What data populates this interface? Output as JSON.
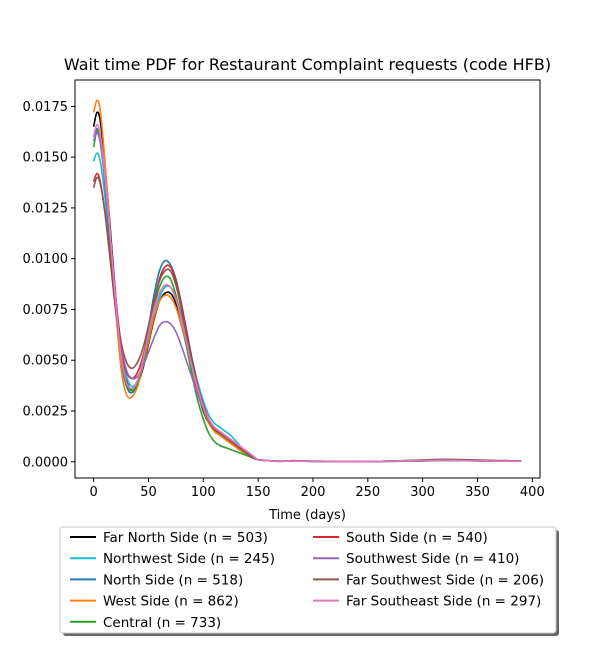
{
  "chart_data": {
    "type": "line",
    "title": "Wait time PDF for Restaurant Complaint  requests (code HFB)",
    "xlabel": "Time (days)",
    "ylabel": "",
    "xlim": [
      -17,
      407
    ],
    "ylim": [
      -0.0008,
      0.0188
    ],
    "xticks": [
      0,
      50,
      100,
      150,
      200,
      250,
      300,
      350,
      400
    ],
    "xtick_labels": [
      "0",
      "50",
      "100",
      "150",
      "200",
      "250",
      "300",
      "350",
      "400"
    ],
    "yticks": [
      0.0,
      0.0025,
      0.005,
      0.0075,
      0.01,
      0.0125,
      0.015,
      0.0175
    ],
    "ytick_labels": [
      "0.0000",
      "0.0025",
      "0.0050",
      "0.0075",
      "0.0100",
      "0.0125",
      "0.0150",
      "0.0175"
    ],
    "grid": false,
    "legend_position": "bottom",
    "series": [
      {
        "name": "Far North Side (n = 503)",
        "color": "#000000",
        "x": [
          0,
          3,
          6,
          10,
          15,
          20,
          25,
          30,
          35,
          40,
          45,
          50,
          55,
          60,
          65,
          70,
          75,
          80,
          85,
          90,
          95,
          100,
          105,
          110,
          115,
          120,
          125,
          130,
          135,
          140,
          145,
          150,
          160,
          170,
          180,
          190,
          200,
          220,
          240,
          260,
          280,
          300,
          320,
          340,
          360,
          380,
          390
        ],
        "y": [
          0.0165,
          0.0172,
          0.0168,
          0.0148,
          0.0116,
          0.0082,
          0.0055,
          0.004,
          0.0035,
          0.0038,
          0.0046,
          0.0058,
          0.007,
          0.0079,
          0.0083,
          0.0083,
          0.0078,
          0.0068,
          0.0057,
          0.0045,
          0.0034,
          0.0025,
          0.0019,
          0.0016,
          0.0014,
          0.0012,
          0.001,
          0.0008,
          0.0006,
          0.0004,
          0.0002,
          0.0001,
          5e-05,
          2e-05,
          5e-05,
          3e-05,
          2e-05,
          1e-05,
          1e-05,
          2e-05,
          3e-05,
          4e-05,
          6e-05,
          5e-05,
          4e-05,
          3e-05,
          3e-05
        ]
      },
      {
        "name": "Northwest Side (n = 245)",
        "color": "#17becf",
        "x": [
          0,
          3,
          6,
          10,
          15,
          20,
          25,
          30,
          35,
          40,
          45,
          50,
          55,
          60,
          65,
          70,
          75,
          80,
          85,
          90,
          95,
          100,
          105,
          110,
          115,
          120,
          125,
          130,
          135,
          140,
          145,
          150,
          160,
          170,
          180,
          190,
          200,
          220,
          240,
          260,
          280,
          300,
          320,
          340,
          360,
          380,
          390
        ],
        "y": [
          0.0148,
          0.0152,
          0.0148,
          0.0132,
          0.0105,
          0.0077,
          0.0055,
          0.0042,
          0.0037,
          0.004,
          0.0048,
          0.006,
          0.0072,
          0.0081,
          0.0086,
          0.0086,
          0.0081,
          0.0072,
          0.0061,
          0.005,
          0.0039,
          0.003,
          0.0023,
          0.0019,
          0.0017,
          0.0015,
          0.0013,
          0.001,
          0.0007,
          0.0005,
          0.0003,
          0.0001,
          5e-05,
          3e-05,
          5e-05,
          4e-05,
          3e-05,
          2e-05,
          1e-05,
          1e-05,
          3e-05,
          6e-05,
          8e-05,
          7e-05,
          5e-05,
          4e-05,
          4e-05
        ]
      },
      {
        "name": "North Side (n = 518)",
        "color": "#1f77b4",
        "x": [
          0,
          3,
          6,
          10,
          15,
          20,
          25,
          30,
          35,
          40,
          45,
          50,
          55,
          60,
          65,
          70,
          75,
          80,
          85,
          90,
          95,
          100,
          105,
          110,
          115,
          120,
          125,
          130,
          135,
          140,
          145,
          150,
          160,
          170,
          180,
          190,
          200,
          220,
          240,
          260,
          280,
          300,
          320,
          340,
          360,
          380,
          390
        ],
        "y": [
          0.016,
          0.0164,
          0.0158,
          0.0139,
          0.0108,
          0.0076,
          0.005,
          0.0037,
          0.0034,
          0.0039,
          0.005,
          0.0066,
          0.0082,
          0.0094,
          0.0099,
          0.0097,
          0.009,
          0.0078,
          0.0064,
          0.005,
          0.0037,
          0.0027,
          0.002,
          0.0016,
          0.0014,
          0.0012,
          0.001,
          0.0008,
          0.0006,
          0.0004,
          0.0002,
          0.0001,
          5e-05,
          3e-05,
          4e-05,
          3e-05,
          2e-05,
          1e-05,
          1e-05,
          2e-05,
          4e-05,
          6e-05,
          7e-05,
          6e-05,
          4e-05,
          3e-05,
          3e-05
        ]
      },
      {
        "name": "West Side (n = 862)",
        "color": "#ff7f0e",
        "x": [
          0,
          3,
          6,
          10,
          15,
          20,
          25,
          30,
          35,
          40,
          45,
          50,
          55,
          60,
          65,
          70,
          75,
          80,
          85,
          90,
          95,
          100,
          105,
          110,
          115,
          120,
          125,
          130,
          135,
          140,
          145,
          150,
          160,
          170,
          180,
          190,
          200,
          220,
          240,
          260,
          280,
          300,
          320,
          340,
          360,
          380,
          390
        ],
        "y": [
          0.0172,
          0.0178,
          0.0173,
          0.015,
          0.0114,
          0.0076,
          0.0046,
          0.0033,
          0.0032,
          0.0037,
          0.0047,
          0.0059,
          0.0071,
          0.0079,
          0.0082,
          0.0081,
          0.0076,
          0.0067,
          0.0056,
          0.0045,
          0.0035,
          0.0026,
          0.0019,
          0.0015,
          0.0013,
          0.0011,
          0.0009,
          0.0007,
          0.0005,
          0.0003,
          0.0002,
          0.0001,
          5e-05,
          3e-05,
          4e-05,
          3e-05,
          2e-05,
          1e-05,
          1e-05,
          2e-05,
          3e-05,
          5e-05,
          6e-05,
          5e-05,
          4e-05,
          3e-05,
          3e-05
        ]
      },
      {
        "name": "Central (n = 733)",
        "color": "#2ca02c",
        "x": [
          0,
          3,
          6,
          10,
          15,
          20,
          25,
          30,
          35,
          40,
          45,
          50,
          55,
          60,
          65,
          70,
          75,
          80,
          85,
          90,
          95,
          100,
          105,
          110,
          115,
          120,
          125,
          130,
          135,
          140,
          145,
          150,
          160,
          170,
          180,
          190,
          200,
          220,
          240,
          260,
          280,
          300,
          320,
          340,
          360,
          380,
          390
        ],
        "y": [
          0.0155,
          0.0163,
          0.016,
          0.0142,
          0.0111,
          0.0078,
          0.0052,
          0.0038,
          0.0035,
          0.0039,
          0.0048,
          0.0062,
          0.0076,
          0.0086,
          0.0091,
          0.009,
          0.0082,
          0.007,
          0.0056,
          0.0042,
          0.003,
          0.0021,
          0.0014,
          0.001,
          0.0008,
          0.0007,
          0.0006,
          0.0005,
          0.0004,
          0.0003,
          0.0002,
          0.0001,
          5e-05,
          3e-05,
          4e-05,
          3e-05,
          2e-05,
          1e-05,
          1e-05,
          2e-05,
          3e-05,
          5e-05,
          6e-05,
          5e-05,
          4e-05,
          3e-05,
          3e-05
        ]
      },
      {
        "name": "South Side (n = 540)",
        "color": "#d62728",
        "x": [
          0,
          3,
          6,
          10,
          15,
          20,
          25,
          30,
          35,
          40,
          45,
          50,
          55,
          60,
          65,
          70,
          75,
          80,
          85,
          90,
          95,
          100,
          105,
          110,
          115,
          120,
          125,
          130,
          135,
          140,
          145,
          150,
          160,
          170,
          180,
          190,
          200,
          220,
          240,
          260,
          280,
          300,
          320,
          340,
          360,
          380,
          390
        ],
        "y": [
          0.0138,
          0.0142,
          0.0138,
          0.0124,
          0.01,
          0.0075,
          0.0055,
          0.0044,
          0.0041,
          0.0044,
          0.0052,
          0.0064,
          0.0078,
          0.009,
          0.0096,
          0.0096,
          0.0089,
          0.0077,
          0.0063,
          0.0049,
          0.0037,
          0.0028,
          0.0021,
          0.0016,
          0.0014,
          0.0012,
          0.001,
          0.0008,
          0.0006,
          0.0004,
          0.0002,
          0.0001,
          5e-05,
          3e-05,
          5e-05,
          4e-05,
          3e-05,
          2e-05,
          1e-05,
          2e-05,
          5e-05,
          8e-05,
          0.0001,
          8e-05,
          6e-05,
          5e-05,
          5e-05
        ]
      },
      {
        "name": "Southwest Side (n = 410)",
        "color": "#9467bd",
        "x": [
          0,
          3,
          6,
          10,
          15,
          20,
          25,
          30,
          35,
          40,
          45,
          50,
          55,
          60,
          65,
          70,
          75,
          80,
          85,
          90,
          95,
          100,
          105,
          110,
          115,
          120,
          125,
          130,
          135,
          140,
          145,
          150,
          160,
          170,
          180,
          190,
          200,
          220,
          240,
          260,
          280,
          300,
          320,
          340,
          360,
          380,
          390
        ],
        "y": [
          0.0158,
          0.0162,
          0.0157,
          0.014,
          0.0112,
          0.0082,
          0.0058,
          0.0045,
          0.0041,
          0.0042,
          0.0047,
          0.0054,
          0.0061,
          0.0067,
          0.0069,
          0.0068,
          0.0064,
          0.0057,
          0.0049,
          0.0041,
          0.0033,
          0.0026,
          0.0021,
          0.0017,
          0.0015,
          0.0013,
          0.0011,
          0.0009,
          0.0007,
          0.0005,
          0.0003,
          0.0001,
          5e-05,
          3e-05,
          4e-05,
          3e-05,
          2e-05,
          1e-05,
          1e-05,
          2e-05,
          4e-05,
          6e-05,
          7e-05,
          6e-05,
          4e-05,
          3e-05,
          3e-05
        ]
      },
      {
        "name": "Far Southwest Side (n = 206)",
        "color": "#8c564b",
        "x": [
          0,
          3,
          6,
          10,
          15,
          20,
          25,
          30,
          35,
          40,
          45,
          50,
          55,
          60,
          65,
          70,
          75,
          80,
          85,
          90,
          95,
          100,
          105,
          110,
          115,
          120,
          125,
          130,
          135,
          140,
          145,
          150,
          160,
          170,
          180,
          190,
          200,
          220,
          240,
          260,
          280,
          300,
          320,
          340,
          360,
          380,
          390
        ],
        "y": [
          0.0135,
          0.014,
          0.0137,
          0.0124,
          0.0102,
          0.0078,
          0.0059,
          0.0049,
          0.0046,
          0.0049,
          0.0056,
          0.0067,
          0.0079,
          0.0089,
          0.0094,
          0.0094,
          0.0087,
          0.0075,
          0.0061,
          0.0048,
          0.0036,
          0.0027,
          0.002,
          0.0016,
          0.0014,
          0.0012,
          0.001,
          0.0008,
          0.0006,
          0.0004,
          0.0002,
          0.0001,
          5e-05,
          3e-05,
          5e-05,
          4e-05,
          3e-05,
          2e-05,
          1e-05,
          2e-05,
          5e-05,
          9e-05,
          0.00012,
          0.0001,
          7e-05,
          5e-05,
          5e-05
        ]
      },
      {
        "name": "Far Southeast Side (n = 297)",
        "color": "#e377c2",
        "x": [
          0,
          3,
          6,
          10,
          15,
          20,
          25,
          30,
          35,
          40,
          45,
          50,
          55,
          60,
          65,
          70,
          75,
          80,
          85,
          90,
          95,
          100,
          105,
          110,
          115,
          120,
          125,
          130,
          135,
          140,
          145,
          150,
          160,
          170,
          180,
          190,
          200,
          220,
          240,
          260,
          280,
          300,
          320,
          340,
          360,
          380,
          390
        ],
        "y": [
          0.016,
          0.0166,
          0.0161,
          0.0143,
          0.0112,
          0.0079,
          0.0052,
          0.0039,
          0.0036,
          0.004,
          0.005,
          0.0063,
          0.0075,
          0.0083,
          0.0087,
          0.0086,
          0.008,
          0.007,
          0.0058,
          0.0046,
          0.0036,
          0.0027,
          0.0021,
          0.0017,
          0.0015,
          0.0013,
          0.0011,
          0.0009,
          0.0007,
          0.0005,
          0.0003,
          0.0001,
          5e-05,
          3e-05,
          4e-05,
          3e-05,
          2e-05,
          1e-05,
          1e-05,
          2e-05,
          4e-05,
          6e-05,
          7e-05,
          6e-05,
          4e-05,
          3e-05,
          3e-05
        ]
      }
    ]
  }
}
